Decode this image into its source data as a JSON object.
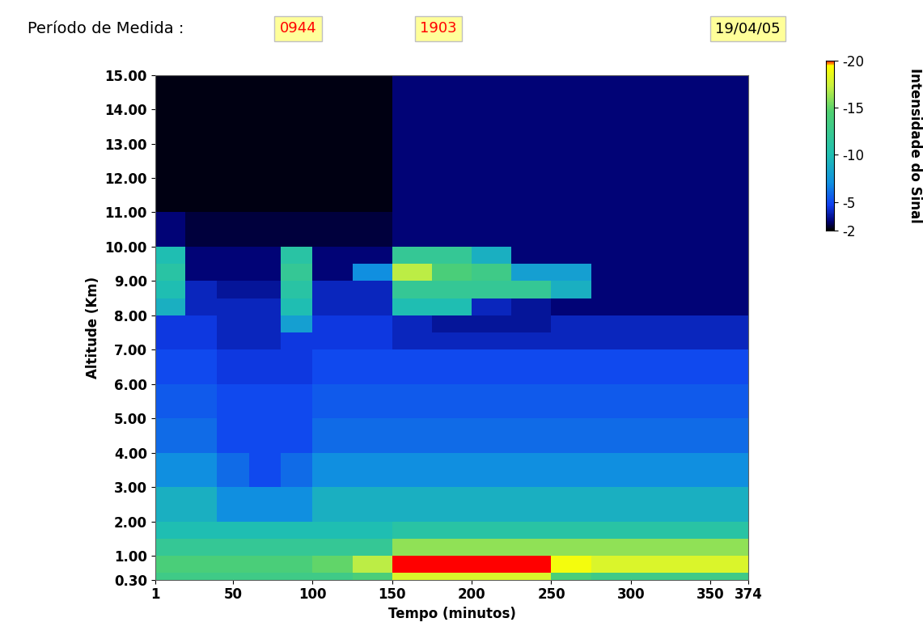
{
  "header": {
    "label": "Período de Medida :",
    "start": "0944",
    "end": "1903",
    "date": "19/04/05"
  },
  "chart_data": {
    "type": "heatmap",
    "x_label": "Tempo (minutos)",
    "y_label": "Altitude (Km)",
    "xlim": [
      1,
      374
    ],
    "xticks": [
      1,
      50,
      100,
      150,
      200,
      250,
      300,
      350,
      374
    ],
    "ylim": [
      0.3,
      15
    ],
    "yticks": [
      {
        "value": 0.3,
        "label": "0.30"
      },
      {
        "value": 1,
        "label": "1.00"
      },
      {
        "value": 2,
        "label": "2.00"
      },
      {
        "value": 3,
        "label": "3.00"
      },
      {
        "value": 4,
        "label": "4.00"
      },
      {
        "value": 5,
        "label": "5.00"
      },
      {
        "value": 6,
        "label": "6.00"
      },
      {
        "value": 7,
        "label": "7.00"
      },
      {
        "value": 8,
        "label": "8.00"
      },
      {
        "value": 9,
        "label": "9.00"
      },
      {
        "value": 10,
        "label": "10.00"
      },
      {
        "value": 11,
        "label": "11.00"
      },
      {
        "value": 12,
        "label": "12.00"
      },
      {
        "value": 13,
        "label": "13.00"
      },
      {
        "value": 14,
        "label": "14.00"
      },
      {
        "value": 15,
        "label": "15.00"
      }
    ],
    "x_edges": [
      1,
      20,
      40,
      60,
      80,
      100,
      125,
      150,
      175,
      200,
      225,
      250,
      275,
      300,
      325,
      350,
      374
    ],
    "y_edges": [
      0.3,
      0.5,
      1.0,
      1.5,
      2.0,
      3.0,
      4.0,
      5.0,
      6.0,
      7.0,
      7.5,
      8.0,
      8.5,
      9.0,
      9.5,
      10.0,
      11.0,
      12.0,
      13.0,
      14.0,
      15.0
    ],
    "cells": [
      [
        -13,
        -13,
        -13,
        -13,
        -13,
        -13,
        -14,
        -18,
        -18,
        -18,
        -18,
        -14,
        -13,
        -13,
        -13,
        -13
      ],
      [
        -14,
        -14,
        -14,
        -14,
        -14,
        -15,
        -17,
        -20,
        -20,
        -20,
        -20,
        -19,
        -18,
        -18,
        -18,
        -18
      ],
      [
        -12,
        -12,
        -12,
        -12,
        -12,
        -12,
        -12,
        -16,
        -16,
        -16,
        -16,
        -16,
        -16,
        -16,
        -16,
        -16
      ],
      [
        -10,
        -10,
        -10,
        -10,
        -10,
        -10,
        -10,
        -11,
        -11,
        -11,
        -11,
        -11,
        -11,
        -11,
        -11,
        -11
      ],
      [
        -9,
        -9,
        -7,
        -7,
        -7,
        -9,
        -9,
        -9,
        -9,
        -9,
        -9,
        -9,
        -9,
        -9,
        -9,
        -9
      ],
      [
        -7,
        -7,
        -6,
        -5,
        -6,
        -7,
        -7,
        -7,
        -7,
        -7,
        -7,
        -7,
        -7,
        -7,
        -7,
        -7
      ],
      [
        -6,
        -6,
        -5,
        -5,
        -5,
        -6,
        -6,
        -6,
        -6,
        -6,
        -6,
        -6,
        -6,
        -6,
        -6,
        -6
      ],
      [
        -5.5,
        -5.5,
        -5,
        -5,
        -5,
        -5.5,
        -5.5,
        -5.5,
        -5.5,
        -5.5,
        -5.5,
        -5.5,
        -5.5,
        -5.5,
        -5.5,
        -5.5
      ],
      [
        -5,
        -5,
        -4.5,
        -4.5,
        -4.5,
        -5,
        -5,
        -5,
        -5,
        -5,
        -5,
        -5,
        -5,
        -5,
        -5,
        -5
      ],
      [
        -4.5,
        -4.5,
        -4,
        -4,
        -4.5,
        -4.5,
        -4.5,
        -4,
        -4,
        -4,
        -4,
        -4,
        -4,
        -4,
        -4,
        -4
      ],
      [
        -4.5,
        -4.5,
        -4,
        -4,
        -8,
        -4.5,
        -4.5,
        -4,
        -3.5,
        -3.5,
        -3.5,
        -4,
        -4,
        -4,
        -4,
        -4
      ],
      [
        -9,
        -4,
        -4,
        -4,
        -10,
        -4,
        -4,
        -10,
        -10,
        -4,
        -3.5,
        -3,
        -3,
        -3,
        -3,
        -3
      ],
      [
        -10,
        -4,
        -3.5,
        -3.5,
        -11,
        -4,
        -4,
        -12,
        -12,
        -12,
        -12,
        -9,
        -3,
        -3,
        -3,
        -3
      ],
      [
        -11,
        -3,
        -3,
        -3,
        -12,
        -3,
        -7,
        -17,
        -14,
        -13,
        -8,
        -8,
        -3,
        -3,
        -3,
        -3
      ],
      [
        -10,
        -3,
        -3,
        -3,
        -11,
        -3,
        -3,
        -12,
        -12,
        -9,
        -3,
        -3,
        -3,
        -3,
        -3,
        -3
      ],
      [
        -3,
        -2.5,
        -2.5,
        -2.5,
        -2.5,
        -2.5,
        -2.5,
        -3,
        -3,
        -3,
        -3,
        -3,
        -3,
        -3,
        -3,
        -3
      ],
      [
        -2.2,
        -2.2,
        -2.2,
        -2.2,
        -2.2,
        -2.2,
        -2.2,
        -3,
        -3,
        -3,
        -3,
        -3,
        -3,
        -3,
        -3,
        -3
      ],
      [
        -2.2,
        -2.2,
        -2.2,
        -2.2,
        -2.2,
        -2.2,
        -2.2,
        -3,
        -3,
        -3,
        -3,
        -3,
        -3,
        -3,
        -3,
        -3
      ],
      [
        -2.2,
        -2.2,
        -2.2,
        -2.2,
        -2.2,
        -2.2,
        -2.2,
        -3,
        -3,
        -3,
        -3,
        -3,
        -3,
        -3,
        -3,
        -3
      ],
      [
        -2.2,
        -2.2,
        -2.2,
        -2.2,
        -2.2,
        -2.2,
        -2.2,
        -3,
        -3,
        -3,
        -3,
        -3,
        -3,
        -3,
        -3,
        -3
      ]
    ],
    "colorbar_label": "Intensidade do Sinal",
    "colorbar_range": [
      -2,
      -20
    ],
    "colorbar_ticks": [
      -20,
      -15,
      -10,
      -5,
      -2
    ]
  }
}
